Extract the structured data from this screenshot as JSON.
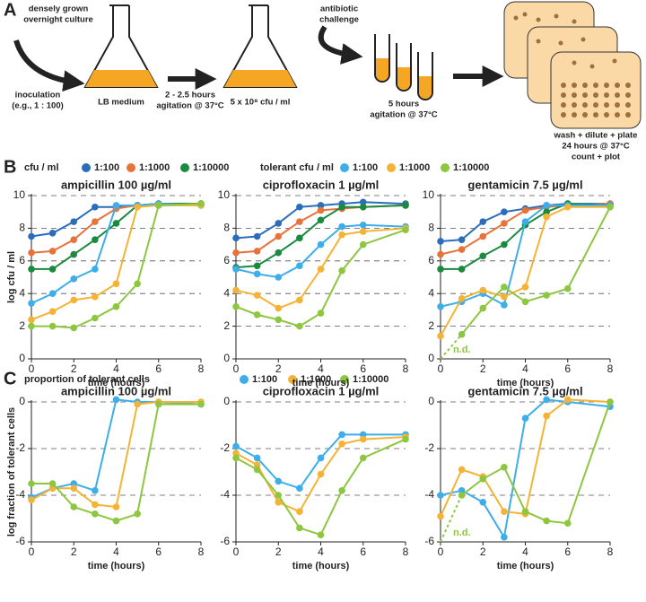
{
  "panel_labels": [
    "A",
    "B",
    "C"
  ],
  "schematic": {
    "overnight": [
      "densely grown",
      "overnight culture"
    ],
    "inoculation": [
      "inoculation",
      "(e.g., 1 : 100)"
    ],
    "medium": "LB medium",
    "growth": [
      "2 - 2.5 hours",
      "agitation @ 37°C"
    ],
    "density": "5 x 10⁸ cfu / ml",
    "challenge": [
      "antibiotic",
      "challenge"
    ],
    "treatment": [
      "5 hours",
      "agitation @ 37°C"
    ],
    "plating": [
      "wash + dilute + plate",
      "24 hours @ 37°C",
      "count + plot"
    ]
  },
  "legend_headers": {
    "B": [
      "cfu / ml",
      "tolerant cfu / ml"
    ],
    "C": "proportion of tolerant cells"
  },
  "chart_data": [
    {
      "type": "line",
      "title": "ampicillin 100 µg/ml",
      "x_label": "time (hours)",
      "y_label": "log cfu / ml",
      "x": [
        0,
        1,
        2,
        3,
        4,
        5,
        6,
        8
      ],
      "xlim": [
        0,
        8
      ],
      "xticks": [
        0,
        2,
        4,
        6,
        8
      ],
      "ylim": [
        0,
        10
      ],
      "yticks": [
        0,
        2,
        4,
        6,
        8,
        10
      ],
      "grid": true,
      "series": [
        {
          "name": "1:100",
          "color": "#2a6ebb",
          "values": [
            7.5,
            7.7,
            8.4,
            9.3,
            9.3,
            9.4,
            9.5,
            9.5
          ]
        },
        {
          "name": "1:1000",
          "color": "#e8733a",
          "values": [
            6.5,
            6.6,
            7.3,
            8.4,
            9.2,
            9.4,
            9.5,
            9.5
          ]
        },
        {
          "name": "1:10000",
          "color": "#1a8a3e",
          "values": [
            5.5,
            5.5,
            6.4,
            7.3,
            8.3,
            9.4,
            9.5,
            9.5
          ]
        },
        {
          "name": "1:100",
          "color": "#3daee9",
          "values": [
            3.4,
            4.0,
            4.9,
            5.5,
            9.4,
            9.4,
            9.5,
            9.4
          ]
        },
        {
          "name": "1:1000",
          "color": "#f5b335",
          "values": [
            2.4,
            2.9,
            3.6,
            3.8,
            4.6,
            9.3,
            9.4,
            9.4
          ]
        },
        {
          "name": "1:10000",
          "color": "#8dc63f",
          "values": [
            2.0,
            2.0,
            1.9,
            2.5,
            3.2,
            4.6,
            9.4,
            9.5
          ]
        }
      ]
    },
    {
      "type": "line",
      "title": "ciprofloxacin 1 µg/ml",
      "x_label": "time (hours)",
      "x": [
        0,
        1,
        2,
        3,
        4,
        5,
        6,
        8
      ],
      "xlim": [
        0,
        8
      ],
      "xticks": [
        0,
        2,
        4,
        6,
        8
      ],
      "ylim": [
        0,
        10
      ],
      "yticks": [
        0,
        2,
        4,
        6,
        8,
        10
      ],
      "grid": true,
      "series": [
        {
          "name": "1:100",
          "color": "#2a6ebb",
          "values": [
            7.4,
            7.5,
            8.3,
            9.3,
            9.4,
            9.5,
            9.6,
            9.5
          ]
        },
        {
          "name": "1:1000",
          "color": "#e8733a",
          "values": [
            6.5,
            6.6,
            7.5,
            8.4,
            9.1,
            9.2,
            9.3,
            9.4
          ]
        },
        {
          "name": "1:10000",
          "color": "#1a8a3e",
          "values": [
            5.6,
            5.7,
            6.5,
            7.4,
            8.5,
            9.3,
            9.3,
            9.4
          ]
        },
        {
          "name": "1:100",
          "color": "#3daee9",
          "values": [
            5.5,
            5.2,
            5.0,
            5.7,
            7.0,
            8.1,
            8.2,
            8.1
          ]
        },
        {
          "name": "1:1000",
          "color": "#f5b335",
          "values": [
            4.2,
            3.9,
            3.1,
            3.6,
            5.5,
            7.6,
            7.8,
            8.0
          ]
        },
        {
          "name": "1:10000",
          "color": "#8dc63f",
          "values": [
            3.2,
            2.7,
            2.4,
            2.0,
            2.8,
            5.4,
            7.0,
            7.9
          ]
        }
      ]
    },
    {
      "type": "line",
      "title": "gentamicin 7.5 µg/ml",
      "x_label": "time (hours)",
      "annotation": "n.d.",
      "x": [
        0,
        1,
        2,
        3,
        4,
        5,
        6,
        8
      ],
      "xlim": [
        0,
        8
      ],
      "xticks": [
        0,
        2,
        4,
        6,
        8
      ],
      "ylim": [
        0,
        10
      ],
      "yticks": [
        0,
        2,
        4,
        6,
        8,
        10
      ],
      "grid": true,
      "series": [
        {
          "name": "1:100",
          "color": "#2a6ebb",
          "values": [
            7.2,
            7.3,
            8.4,
            9.0,
            9.2,
            9.4,
            9.5,
            9.5
          ]
        },
        {
          "name": "1:1000",
          "color": "#e8733a",
          "values": [
            6.4,
            6.7,
            7.5,
            8.3,
            9.1,
            9.3,
            9.4,
            9.5
          ]
        },
        {
          "name": "1:10000",
          "color": "#1a8a3e",
          "values": [
            5.5,
            5.5,
            6.3,
            7.0,
            8.2,
            9.0,
            9.5,
            9.4
          ]
        },
        {
          "name": "1:100",
          "color": "#3daee9",
          "values": [
            3.2,
            3.5,
            4.0,
            3.3,
            8.4,
            9.4,
            9.4,
            9.4
          ]
        },
        {
          "name": "1:1000",
          "color": "#f5b335",
          "values": [
            1.4,
            3.7,
            4.2,
            3.8,
            4.4,
            8.7,
            9.3,
            9.3
          ]
        },
        {
          "name": "1:10000",
          "color": "#8dc63f",
          "values": [
            null,
            1.5,
            3.1,
            4.4,
            3.5,
            3.9,
            4.3,
            9.3
          ]
        }
      ]
    },
    {
      "type": "line",
      "title": "ampicillin 100 µg/ml",
      "x_label": "time (hours)",
      "y_label": "log fraction of tolerant cells",
      "x": [
        0,
        1,
        2,
        3,
        4,
        5,
        6,
        8
      ],
      "xlim": [
        0,
        8
      ],
      "xticks": [
        0,
        2,
        4,
        6,
        8
      ],
      "ylim": [
        -6,
        0
      ],
      "yticks": [
        -6,
        -4,
        -2,
        0
      ],
      "grid": true,
      "series": [
        {
          "name": "1:100",
          "color": "#3daee9",
          "values": [
            -4.1,
            -3.7,
            -3.5,
            -3.8,
            0.1,
            0,
            0,
            -0.1
          ]
        },
        {
          "name": "1:1000",
          "color": "#f5b335",
          "values": [
            -4.2,
            -3.7,
            -3.7,
            -4.4,
            -4.5,
            -0.1,
            0,
            0
          ]
        },
        {
          "name": "1:10000",
          "color": "#8dc63f",
          "values": [
            -3.5,
            -3.5,
            -4.5,
            -4.8,
            -5.1,
            -4.8,
            -0.1,
            -0.1
          ]
        }
      ]
    },
    {
      "type": "line",
      "title": "ciprofloxacin 1 µg/ml",
      "x_label": "time (hours)",
      "x": [
        0,
        1,
        2,
        3,
        4,
        5,
        6,
        8
      ],
      "xlim": [
        0,
        8
      ],
      "xticks": [
        0,
        2,
        4,
        6,
        8
      ],
      "ylim": [
        -6,
        0
      ],
      "yticks": [
        -6,
        -4,
        -2,
        0
      ],
      "grid": true,
      "series": [
        {
          "name": "1:100",
          "color": "#3daee9",
          "values": [
            -1.9,
            -2.4,
            -3.4,
            -3.7,
            -2.4,
            -1.4,
            -1.4,
            -1.4
          ]
        },
        {
          "name": "1:1000",
          "color": "#f5b335",
          "values": [
            -2.2,
            -2.7,
            -4.3,
            -4.7,
            -3.1,
            -1.8,
            -1.6,
            -1.5
          ]
        },
        {
          "name": "1:10000",
          "color": "#8dc63f",
          "values": [
            -2.4,
            -2.9,
            -4.0,
            -5.4,
            -5.7,
            -3.8,
            -2.4,
            -1.6
          ]
        }
      ]
    },
    {
      "type": "line",
      "title": "gentamicin 7.5 µg/ml",
      "x_label": "time (hours)",
      "annotation": "n.d.",
      "x": [
        0,
        1,
        2,
        3,
        4,
        5,
        6,
        8
      ],
      "xlim": [
        0,
        8
      ],
      "xticks": [
        0,
        2,
        4,
        6,
        8
      ],
      "ylim": [
        -6,
        0
      ],
      "yticks": [
        -6,
        -4,
        -2,
        0
      ],
      "grid": true,
      "series": [
        {
          "name": "1:100",
          "color": "#3daee9",
          "values": [
            -4.0,
            -3.8,
            -4.3,
            -5.8,
            -0.7,
            0.1,
            0,
            -0.2
          ]
        },
        {
          "name": "1:1000",
          "color": "#f5b335",
          "values": [
            -4.9,
            -2.9,
            -3.2,
            -4.7,
            -4.8,
            -0.6,
            0.1,
            0
          ]
        },
        {
          "name": "1:10000",
          "color": "#8dc63f",
          "values": [
            null,
            -4.0,
            -3.3,
            -2.8,
            -4.7,
            -5.1,
            -5.2,
            0
          ]
        }
      ]
    }
  ]
}
